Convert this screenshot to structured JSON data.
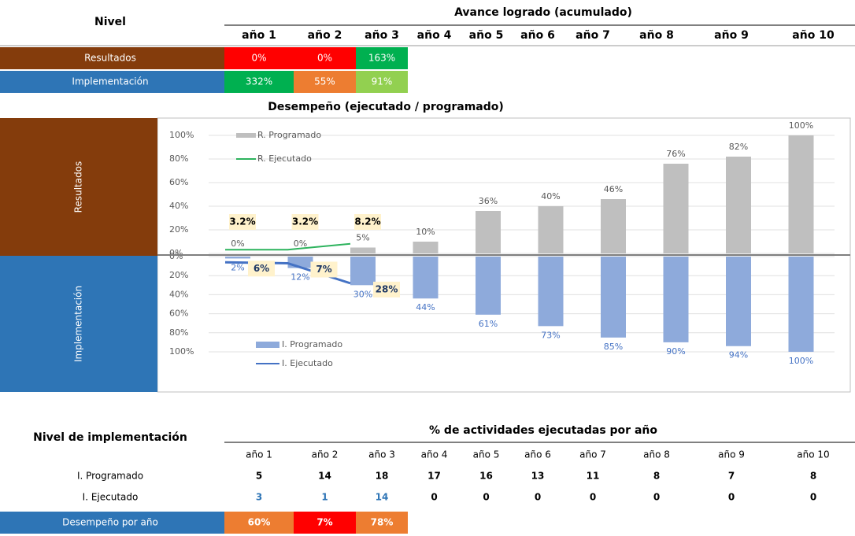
{
  "avance": {
    "nivel": "Nivel",
    "title": "Avance logrado (acumulado)",
    "years": [
      "año 1",
      "año 2",
      "año 3",
      "año 4",
      "año 5",
      "año 6",
      "año 7",
      "año 8",
      "año 9",
      "año 10"
    ],
    "rows": [
      {
        "label": "Resultados",
        "color": "#843c0c",
        "cells": [
          {
            "text": "0%",
            "color": "#ff0000"
          },
          {
            "text": "0%",
            "color": "#ff0000"
          },
          {
            "text": "163%",
            "color": "#00b050"
          }
        ]
      },
      {
        "label": "Implementación",
        "color": "#2e75b6",
        "cells": [
          {
            "text": "332%",
            "color": "#00b050"
          },
          {
            "text": "55%",
            "color": "#ed7d31"
          },
          {
            "text": "91%",
            "color": "#92d050"
          }
        ]
      }
    ]
  },
  "chart_data": {
    "type": "bar",
    "title": "Desempeño (ejecutado / programado)",
    "panels": [
      {
        "label": "Resultados",
        "color": "#843c0c"
      },
      {
        "label": "Implementación",
        "color": "#2e75b6"
      }
    ],
    "ylim": [
      0,
      100
    ],
    "yticks": [
      {
        "value": 0,
        "label": "0%"
      },
      {
        "value": 20,
        "label": "20%"
      },
      {
        "value": 40,
        "label": "40%"
      },
      {
        "value": 60,
        "label": "60%"
      },
      {
        "value": 80,
        "label": "80%"
      },
      {
        "value": 100,
        "label": "100%"
      }
    ],
    "y2lim": [
      0,
      100
    ],
    "y2ticks": [
      {
        "value": 0,
        "label": "0%"
      },
      {
        "value": 20,
        "label": "20%"
      },
      {
        "value": 40,
        "label": "40%"
      },
      {
        "value": 60,
        "label": "60%"
      },
      {
        "value": 80,
        "label": "80%"
      },
      {
        "value": 100,
        "label": "100%"
      }
    ],
    "grid": true,
    "series": [
      {
        "name": "R. Programado",
        "type": "bar",
        "color": "#bfbfbf",
        "values": [
          0,
          0,
          5,
          10,
          36,
          40,
          46,
          76,
          82,
          100
        ],
        "value_labels": [
          "0%",
          "0%",
          "5%",
          "10%",
          "36%",
          "40%",
          "46%",
          "76%",
          "82%",
          "100%"
        ]
      },
      {
        "name": "R. Ejecutado",
        "type": "line",
        "color": "#2db35d",
        "values": [
          3.2,
          3.2,
          8.2,
          null,
          null,
          null,
          null,
          null,
          null,
          null
        ],
        "value_labels": [
          "3.2%",
          "3.2%",
          "8.2%",
          null,
          null,
          null,
          null,
          null,
          null,
          null
        ]
      },
      {
        "name": "I. Programado",
        "type": "bar",
        "axis": "y2",
        "color": "#8eaadb",
        "values": [
          2,
          12,
          30,
          44,
          61,
          73,
          85,
          90,
          94,
          100
        ],
        "value_labels": [
          "2%",
          "12%",
          "30%",
          "44%",
          "61%",
          "73%",
          "85%",
          "90%",
          "94%",
          "100%"
        ]
      },
      {
        "name": "I. Ejecutado",
        "type": "line",
        "axis": "y2",
        "color": "#4472c4",
        "values": [
          6,
          7,
          28,
          null,
          null,
          null,
          null,
          null,
          null,
          null
        ],
        "value_labels": [
          "6%",
          "7%",
          "28%",
          null,
          null,
          null,
          null,
          null,
          null,
          null
        ]
      }
    ]
  },
  "actividades": {
    "nivel": "Nivel de implementación",
    "title": "% de actividades ejecutadas por año",
    "years": [
      "año 1",
      "año 2",
      "año 3",
      "año 4",
      "año 5",
      "año 6",
      "año 7",
      "año 8",
      "año 9",
      "año 10"
    ],
    "rows": [
      {
        "label": "I. Programado",
        "values": [
          5,
          14,
          18,
          17,
          16,
          13,
          11,
          8,
          7,
          8
        ]
      },
      {
        "label": "I. Ejecutado",
        "values": [
          3,
          1,
          14,
          0,
          0,
          0,
          0,
          0,
          0,
          0
        ]
      }
    ],
    "desempeno": {
      "label": "Desempeño por año",
      "color": "#2e75b6",
      "cells": [
        {
          "text": "60%",
          "color": "#ed7d31"
        },
        {
          "text": "7%",
          "color": "#ff0000"
        },
        {
          "text": "78%",
          "color": "#ed7d31"
        }
      ]
    }
  }
}
